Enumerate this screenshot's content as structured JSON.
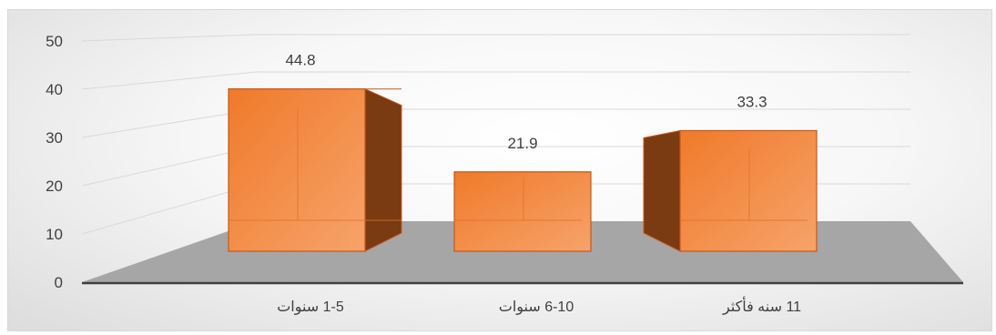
{
  "chart_data": {
    "type": "bar",
    "title": "",
    "xlabel": "",
    "ylabel": "",
    "categories": [
      "1-5 سنوات",
      "6-10 سنوات",
      "11 سنه فأكثر"
    ],
    "values": [
      44.8,
      21.9,
      33.3
    ],
    "data_labels": [
      "44.8",
      "21.9",
      "33.3"
    ],
    "ylim": [
      0,
      50
    ],
    "yticks": [
      0,
      10,
      20,
      30,
      40,
      50
    ],
    "ytick_labels": [
      "0",
      "10",
      "20",
      "30",
      "40",
      "50"
    ],
    "grid": true,
    "legend": "none",
    "style": "3d-column",
    "colors": {
      "bar_front": "#f28a3e",
      "bar_top": "#f6a66a",
      "bar_side": "#7a3a12",
      "bar_edge": "#c8581b",
      "floor": "#a6a6a6",
      "axis": "#404040",
      "grid": "#d9d9d9"
    }
  }
}
